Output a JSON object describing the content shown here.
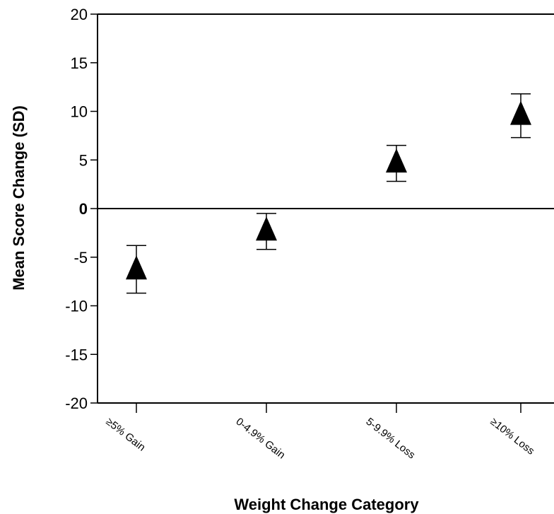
{
  "chart_data": {
    "type": "scatter",
    "xlabel": "Weight Change Category",
    "ylabel": "Mean Score Change (SD)",
    "categories": [
      "≥5% Gain",
      "0-4.9% Gain",
      "5-9.9% Loss",
      "≥10% Loss"
    ],
    "series": [
      {
        "marker": "triangle",
        "values": [
          -6.3,
          -2.3,
          4.7,
          9.6
        ],
        "error_low": [
          -8.7,
          -4.2,
          2.8,
          7.3
        ],
        "error_high": [
          -3.8,
          -0.5,
          6.5,
          11.8
        ]
      }
    ],
    "ylim": [
      -20,
      20
    ],
    "yticks": [
      "-20",
      "-15",
      "-10",
      "-5",
      "0",
      "5",
      "10",
      "15",
      "20"
    ],
    "zero_line": true,
    "grid": false,
    "colors": {
      "marker": "#000000",
      "axis": "#000000"
    }
  }
}
